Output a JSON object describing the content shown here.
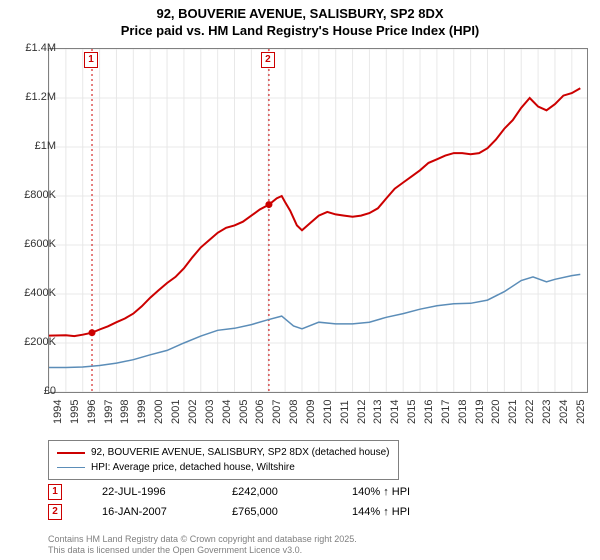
{
  "title_line1": "92, BOUVERIE AVENUE, SALISBURY, SP2 8DX",
  "title_line2": "Price paid vs. HM Land Registry's House Price Index (HPI)",
  "chart": {
    "type": "line",
    "background_color": "#ffffff",
    "grid_color": "#e8e8e8",
    "border_color": "#808080",
    "x_start": 1994,
    "x_end": 2025.9,
    "xticks": [
      1994,
      1995,
      1996,
      1997,
      1998,
      1999,
      2000,
      2001,
      2002,
      2003,
      2004,
      2005,
      2006,
      2007,
      2008,
      2009,
      2010,
      2011,
      2012,
      2013,
      2014,
      2015,
      2016,
      2017,
      2018,
      2019,
      2020,
      2021,
      2022,
      2023,
      2024,
      2025
    ],
    "y_min": 0,
    "y_max": 1400000,
    "yticks": [
      {
        "v": 0,
        "label": "£0"
      },
      {
        "v": 200000,
        "label": "£200K"
      },
      {
        "v": 400000,
        "label": "£400K"
      },
      {
        "v": 600000,
        "label": "£600K"
      },
      {
        "v": 800000,
        "label": "£800K"
      },
      {
        "v": 1000000,
        "label": "£1M"
      },
      {
        "v": 1200000,
        "label": "£1.2M"
      },
      {
        "v": 1400000,
        "label": "£1.4M"
      }
    ],
    "series": [
      {
        "name": "92, BOUVERIE AVENUE, SALISBURY, SP2 8DX (detached house)",
        "color": "#cc0000",
        "width": 2,
        "points": [
          [
            1994,
            230000
          ],
          [
            1995,
            232000
          ],
          [
            1995.5,
            228000
          ],
          [
            1996,
            234000
          ],
          [
            1996.55,
            242000
          ],
          [
            1997,
            255000
          ],
          [
            1997.5,
            268000
          ],
          [
            1998,
            285000
          ],
          [
            1998.5,
            300000
          ],
          [
            1999,
            320000
          ],
          [
            1999.5,
            350000
          ],
          [
            2000,
            385000
          ],
          [
            2000.5,
            415000
          ],
          [
            2001,
            445000
          ],
          [
            2001.5,
            470000
          ],
          [
            2002,
            505000
          ],
          [
            2002.5,
            550000
          ],
          [
            2003,
            590000
          ],
          [
            2003.5,
            620000
          ],
          [
            2004,
            650000
          ],
          [
            2004.5,
            670000
          ],
          [
            2005,
            680000
          ],
          [
            2005.5,
            695000
          ],
          [
            2006,
            720000
          ],
          [
            2006.5,
            745000
          ],
          [
            2007.04,
            765000
          ],
          [
            2007.5,
            790000
          ],
          [
            2007.8,
            800000
          ],
          [
            2008,
            775000
          ],
          [
            2008.3,
            740000
          ],
          [
            2008.7,
            680000
          ],
          [
            2009,
            660000
          ],
          [
            2009.5,
            690000
          ],
          [
            2010,
            720000
          ],
          [
            2010.5,
            735000
          ],
          [
            2011,
            725000
          ],
          [
            2011.5,
            720000
          ],
          [
            2012,
            715000
          ],
          [
            2012.5,
            720000
          ],
          [
            2013,
            730000
          ],
          [
            2013.5,
            750000
          ],
          [
            2014,
            790000
          ],
          [
            2014.5,
            830000
          ],
          [
            2015,
            855000
          ],
          [
            2015.5,
            880000
          ],
          [
            2016,
            905000
          ],
          [
            2016.5,
            935000
          ],
          [
            2017,
            950000
          ],
          [
            2017.5,
            965000
          ],
          [
            2018,
            975000
          ],
          [
            2018.5,
            975000
          ],
          [
            2019,
            970000
          ],
          [
            2019.5,
            975000
          ],
          [
            2020,
            995000
          ],
          [
            2020.5,
            1030000
          ],
          [
            2021,
            1075000
          ],
          [
            2021.5,
            1110000
          ],
          [
            2022,
            1160000
          ],
          [
            2022.5,
            1200000
          ],
          [
            2023,
            1165000
          ],
          [
            2023.5,
            1150000
          ],
          [
            2024,
            1175000
          ],
          [
            2024.5,
            1210000
          ],
          [
            2025,
            1220000
          ],
          [
            2025.5,
            1240000
          ]
        ]
      },
      {
        "name": "HPI: Average price, detached house, Wiltshire",
        "color": "#5b8db8",
        "width": 1.5,
        "points": [
          [
            1994,
            100000
          ],
          [
            1995,
            100000
          ],
          [
            1996,
            102000
          ],
          [
            1997,
            108000
          ],
          [
            1998,
            118000
          ],
          [
            1999,
            132000
          ],
          [
            2000,
            152000
          ],
          [
            2001,
            170000
          ],
          [
            2002,
            200000
          ],
          [
            2003,
            228000
          ],
          [
            2004,
            252000
          ],
          [
            2005,
            260000
          ],
          [
            2006,
            275000
          ],
          [
            2007,
            295000
          ],
          [
            2007.8,
            310000
          ],
          [
            2008.5,
            270000
          ],
          [
            2009,
            258000
          ],
          [
            2010,
            285000
          ],
          [
            2011,
            278000
          ],
          [
            2012,
            278000
          ],
          [
            2013,
            285000
          ],
          [
            2014,
            305000
          ],
          [
            2015,
            320000
          ],
          [
            2016,
            338000
          ],
          [
            2017,
            352000
          ],
          [
            2018,
            360000
          ],
          [
            2019,
            362000
          ],
          [
            2020,
            375000
          ],
          [
            2021,
            410000
          ],
          [
            2022,
            455000
          ],
          [
            2022.7,
            470000
          ],
          [
            2023.5,
            450000
          ],
          [
            2024,
            460000
          ],
          [
            2025,
            475000
          ],
          [
            2025.5,
            480000
          ]
        ]
      }
    ],
    "sale_markers": [
      {
        "n": "1",
        "year": 1996.55,
        "value": 242000,
        "color": "#cc0000"
      },
      {
        "n": "2",
        "year": 2007.04,
        "value": 765000,
        "color": "#cc0000"
      }
    ]
  },
  "legend": {
    "items": [
      {
        "color": "#cc0000",
        "label": "92, BOUVERIE AVENUE, SALISBURY, SP2 8DX (detached house)",
        "width": 2
      },
      {
        "color": "#5b8db8",
        "label": "HPI: Average price, detached house, Wiltshire",
        "width": 1.5
      }
    ]
  },
  "transactions": [
    {
      "n": "1",
      "color": "#cc0000",
      "date": "22-JUL-1996",
      "price": "£242,000",
      "hpi": "140% ↑ HPI"
    },
    {
      "n": "2",
      "color": "#cc0000",
      "date": "16-JAN-2007",
      "price": "£765,000",
      "hpi": "144% ↑ HPI"
    }
  ],
  "footer_line1": "Contains HM Land Registry data © Crown copyright and database right 2025.",
  "footer_line2": "This data is licensed under the Open Government Licence v3.0."
}
